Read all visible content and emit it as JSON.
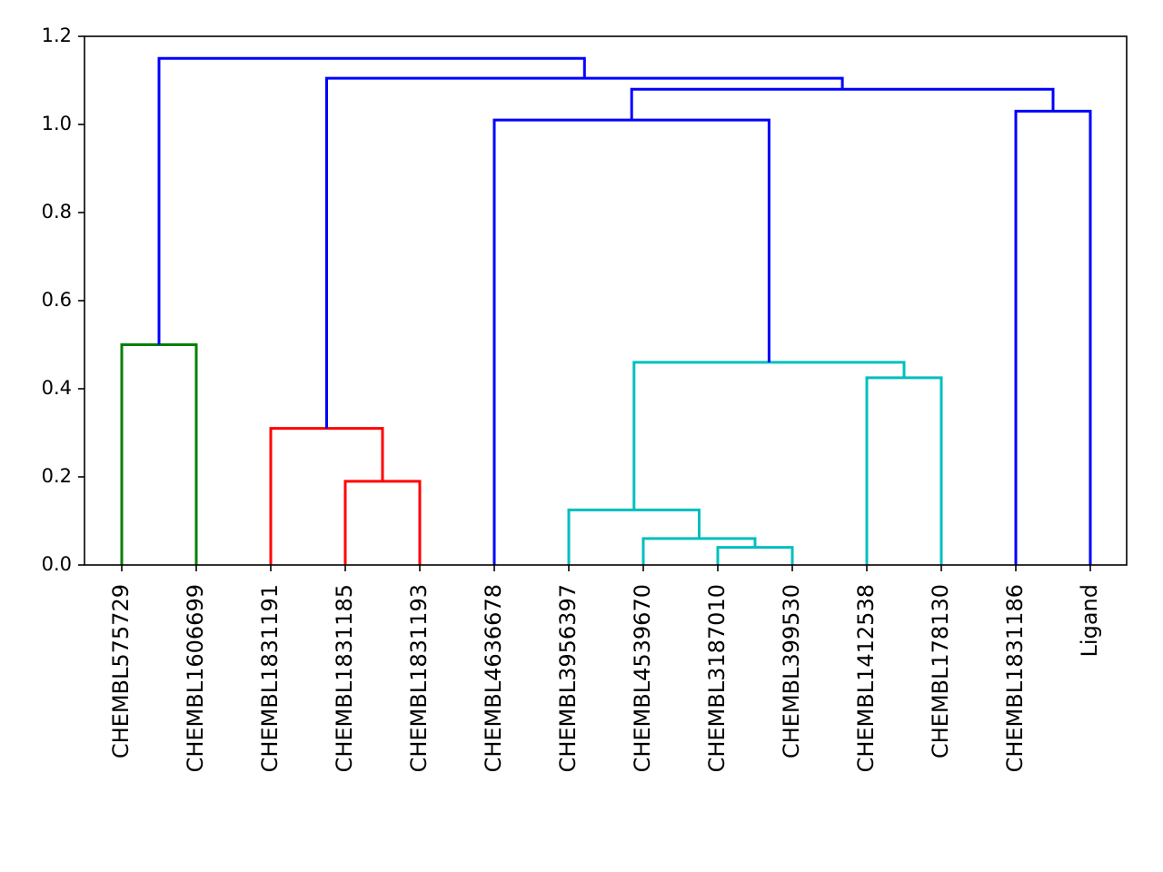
{
  "chart_data": {
    "type": "dendrogram",
    "title": "",
    "xlabel": "",
    "ylabel": "",
    "ylim": [
      0,
      1.2
    ],
    "y_ticks": [
      "0.0",
      "0.2",
      "0.4",
      "0.6",
      "0.8",
      "1.0",
      "1.2"
    ],
    "grid": false,
    "leaves": [
      "CHEMBL575729",
      "CHEMBL1606699",
      "CHEMBL1831191",
      "CHEMBL1831185",
      "CHEMBL1831193",
      "CHEMBL4636678",
      "CHEMBL3956397",
      "CHEMBL4539670",
      "CHEMBL3187010",
      "CHEMBL399530",
      "CHEMBL1412538",
      "CHEMBL178130",
      "CHEMBL1831186",
      "Ligand"
    ],
    "colors": {
      "green": "#008000",
      "red": "#ff0000",
      "cyan": "#00bfbf",
      "blue": "#0000ff"
    },
    "merges": [
      {
        "left": "L0",
        "right": "L1",
        "height": 0.5,
        "color": "green"
      },
      {
        "left": "L3",
        "right": "L4",
        "height": 0.19,
        "color": "red"
      },
      {
        "left": "L2",
        "right": "M1",
        "height": 0.31,
        "color": "red"
      },
      {
        "left": "L8",
        "right": "L9",
        "height": 0.04,
        "color": "cyan"
      },
      {
        "left": "L7",
        "right": "M3",
        "height": 0.06,
        "color": "cyan"
      },
      {
        "left": "L6",
        "right": "M4",
        "height": 0.125,
        "color": "cyan"
      },
      {
        "left": "L10",
        "right": "L11",
        "height": 0.425,
        "color": "cyan"
      },
      {
        "left": "M5",
        "right": "M6",
        "height": 0.46,
        "color": "cyan"
      },
      {
        "left": "L5",
        "right": "M7",
        "height": 1.01,
        "color": "blue"
      },
      {
        "left": "L12",
        "right": "L13",
        "height": 1.03,
        "color": "blue"
      },
      {
        "left": "M8",
        "right": "M9",
        "height": 1.08,
        "color": "blue"
      },
      {
        "left": "M2",
        "right": "M10",
        "height": 1.105,
        "color": "blue"
      },
      {
        "left": "M0",
        "right": "M11",
        "height": 1.15,
        "color": "blue"
      }
    ]
  }
}
